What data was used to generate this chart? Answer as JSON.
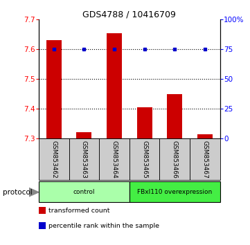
{
  "title": "GDS4788 / 10416709",
  "samples": [
    "GSM853462",
    "GSM853463",
    "GSM853464",
    "GSM853465",
    "GSM853466",
    "GSM853467"
  ],
  "bar_values": [
    7.63,
    7.32,
    7.655,
    7.405,
    7.45,
    7.315
  ],
  "dot_values": [
    75,
    75,
    75,
    75,
    75,
    75
  ],
  "bar_color": "#cc0000",
  "dot_color": "#0000cc",
  "ylim_left": [
    7.3,
    7.7
  ],
  "ylim_right": [
    0,
    100
  ],
  "yticks_left": [
    7.3,
    7.4,
    7.5,
    7.6,
    7.7
  ],
  "yticks_right": [
    0,
    25,
    50,
    75,
    100
  ],
  "grid_values": [
    7.4,
    7.5,
    7.6
  ],
  "bar_baseline": 7.3,
  "groups": [
    {
      "label": "control",
      "start": 0,
      "end": 2,
      "color": "#aaffaa"
    },
    {
      "label": "FBxl110 overexpression",
      "start": 3,
      "end": 5,
      "color": "#44ee44"
    }
  ],
  "legend_items": [
    {
      "color": "#cc0000",
      "label": "transformed count"
    },
    {
      "color": "#0000cc",
      "label": "percentile rank within the sample"
    }
  ],
  "protocol_label": "protocol",
  "sample_bg": "#cccccc",
  "bar_width": 0.5,
  "title_fontsize": 9
}
